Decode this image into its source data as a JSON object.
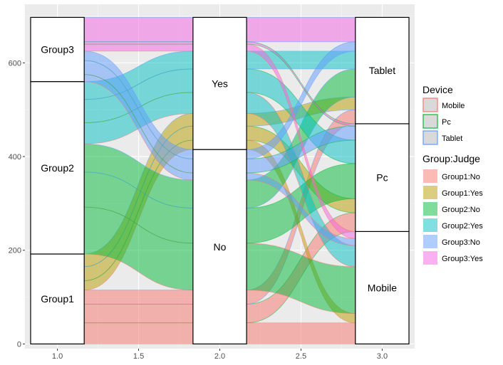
{
  "chart_data": {
    "type": "alluvial",
    "axes": [
      "Group",
      "Judge",
      "Device"
    ],
    "x_ticks": [
      "1.0",
      "1.5",
      "2.0",
      "2.5",
      "3.0"
    ],
    "y_ticks": [
      "0",
      "200",
      "400",
      "600"
    ],
    "xlim": [
      0.8,
      3.2
    ],
    "ylim": [
      -10,
      725
    ],
    "grid": true,
    "legend_position": "right",
    "strata": [
      {
        "axis": 1,
        "label": "Group1",
        "y0": 0,
        "y1": 192
      },
      {
        "axis": 1,
        "label": "Group2",
        "y0": 192,
        "y1": 560
      },
      {
        "axis": 1,
        "label": "Group3",
        "y0": 560,
        "y1": 697
      },
      {
        "axis": 2,
        "label": "No",
        "y0": 0,
        "y1": 415
      },
      {
        "axis": 2,
        "label": "Yes",
        "y0": 415,
        "y1": 697
      },
      {
        "axis": 3,
        "label": "Mobile",
        "y0": 0,
        "y1": 240
      },
      {
        "axis": 3,
        "label": "Pc",
        "y0": 240,
        "y1": 470
      },
      {
        "axis": 3,
        "label": "Tablet",
        "y0": 470,
        "y1": 697
      }
    ],
    "flows": [
      {
        "group": "Group1",
        "judge": "No",
        "device": "Mobile",
        "value": 45
      },
      {
        "group": "Group1",
        "judge": "No",
        "device": "Pc",
        "value": 40
      },
      {
        "group": "Group1",
        "judge": "No",
        "device": "Tablet",
        "value": 30
      },
      {
        "group": "Group1",
        "judge": "Yes",
        "device": "Mobile",
        "value": 20
      },
      {
        "group": "Group1",
        "judge": "Yes",
        "device": "Pc",
        "value": 30
      },
      {
        "group": "Group1",
        "judge": "Yes",
        "device": "Tablet",
        "value": 27
      },
      {
        "group": "Group2",
        "judge": "No",
        "device": "Mobile",
        "value": 100
      },
      {
        "group": "Group2",
        "judge": "No",
        "device": "Pc",
        "value": 75
      },
      {
        "group": "Group2",
        "judge": "No",
        "device": "Tablet",
        "value": 60
      },
      {
        "group": "Group2",
        "judge": "Yes",
        "device": "Mobile",
        "value": 45
      },
      {
        "group": "Group2",
        "judge": "Yes",
        "device": "Pc",
        "value": 50
      },
      {
        "group": "Group2",
        "judge": "Yes",
        "device": "Tablet",
        "value": 38
      },
      {
        "group": "Group3",
        "judge": "No",
        "device": "Mobile",
        "value": 15
      },
      {
        "group": "Group3",
        "judge": "No",
        "device": "Pc",
        "value": 30
      },
      {
        "group": "Group3",
        "judge": "No",
        "device": "Tablet",
        "value": 20
      },
      {
        "group": "Group3",
        "judge": "Yes",
        "device": "Mobile",
        "value": 15
      },
      {
        "group": "Group3",
        "judge": "Yes",
        "device": "Pc",
        "value": 5
      },
      {
        "group": "Group3",
        "judge": "Yes",
        "device": "Tablet",
        "value": 52
      }
    ],
    "legend_device": {
      "title": "Device",
      "items": [
        {
          "label": "Mobile",
          "color": "#f8766d"
        },
        {
          "label": "Pc",
          "color": "#00ba38"
        },
        {
          "label": "Tablet",
          "color": "#619cff"
        }
      ]
    },
    "legend_group_judge": {
      "title": "Group:Judge",
      "items": [
        {
          "label": "Group1:No",
          "color": "#f8766d"
        },
        {
          "label": "Group1:Yes",
          "color": "#b79f00"
        },
        {
          "label": "Group2:No",
          "color": "#00ba38"
        },
        {
          "label": "Group2:Yes",
          "color": "#00bfc4"
        },
        {
          "label": "Group3:No",
          "color": "#619cff"
        },
        {
          "label": "Group3:Yes",
          "color": "#f564e3"
        }
      ]
    }
  }
}
